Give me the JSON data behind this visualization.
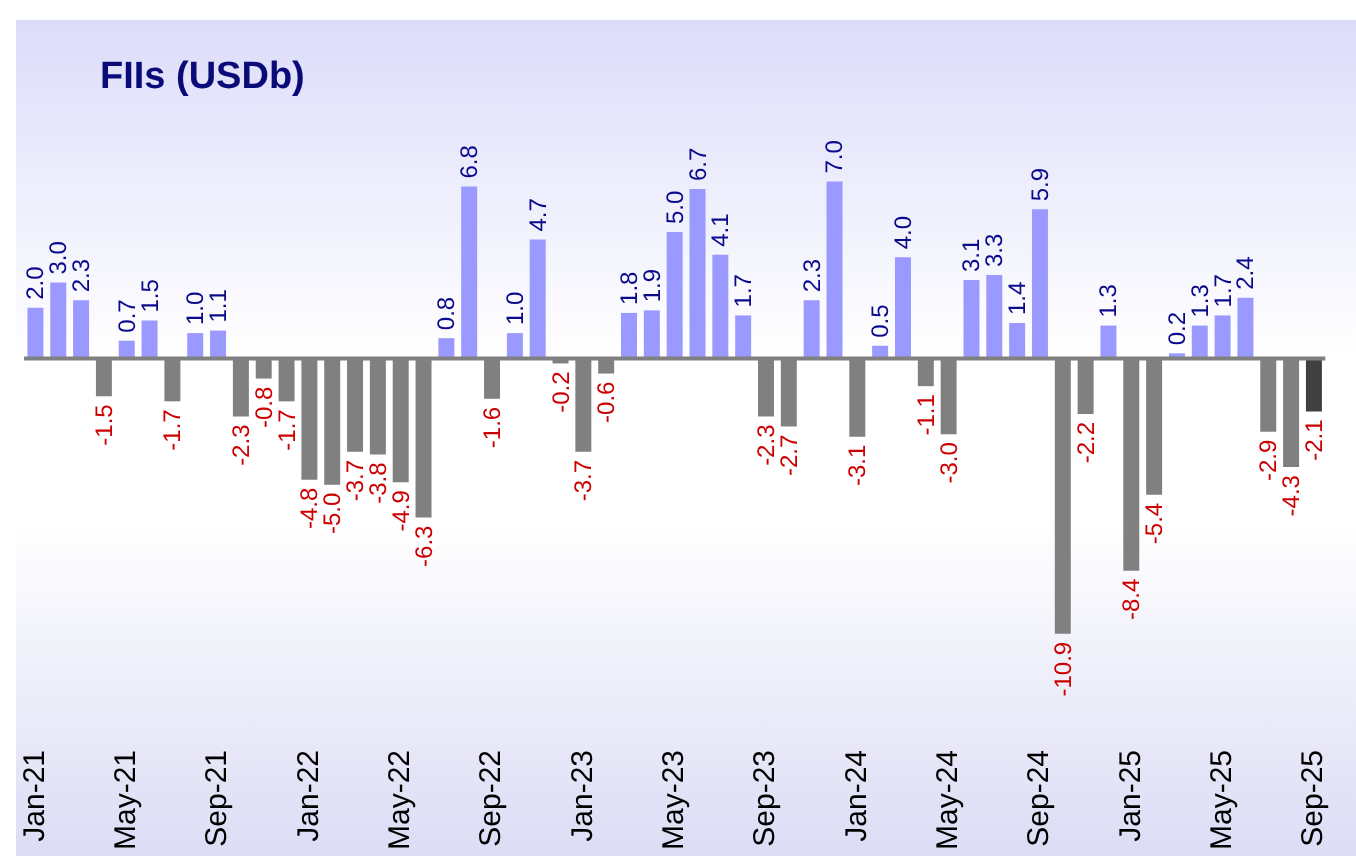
{
  "chart_data": {
    "type": "bar",
    "title": "FIIs (USDb)",
    "categories": [
      "Jan-21",
      null,
      null,
      null,
      "May-21",
      null,
      null,
      null,
      "Sep-21",
      null,
      null,
      null,
      "Jan-22",
      null,
      null,
      null,
      "May-22",
      null,
      null,
      null,
      "Sep-22",
      null,
      null,
      null,
      "Jan-23",
      null,
      null,
      null,
      "May-23",
      null,
      null,
      null,
      "Sep-23",
      null,
      null,
      null,
      "Jan-24",
      null,
      null,
      null,
      "May-24",
      null,
      null,
      null,
      "Sep-24",
      null,
      null,
      null,
      "Jan-25",
      null,
      null,
      null,
      "May-25",
      null,
      null,
      null,
      "Sep-25"
    ],
    "values": [
      2.0,
      3.0,
      2.3,
      -1.5,
      0.7,
      1.5,
      -1.7,
      1.0,
      1.1,
      -2.3,
      -0.8,
      -1.7,
      -4.8,
      -5.0,
      -3.7,
      -3.8,
      -4.9,
      -6.3,
      0.8,
      6.8,
      -1.6,
      1.0,
      4.7,
      -0.2,
      -3.7,
      -0.6,
      1.8,
      1.9,
      5.0,
      6.7,
      4.1,
      1.7,
      -2.3,
      -2.7,
      2.3,
      7.0,
      -3.1,
      0.5,
      4.0,
      -1.1,
      -3.0,
      3.1,
      3.3,
      1.4,
      5.9,
      -10.9,
      -2.2,
      1.3,
      -8.4,
      -5.4,
      0.2,
      1.3,
      1.7,
      2.4,
      -2.9,
      -4.3,
      -2.1
    ],
    "colors": [
      "#9999ff",
      "#9999ff",
      "#9999ff",
      "#808080",
      "#9999ff",
      "#9999ff",
      "#808080",
      "#9999ff",
      "#9999ff",
      "#808080",
      "#808080",
      "#808080",
      "#808080",
      "#808080",
      "#808080",
      "#808080",
      "#808080",
      "#808080",
      "#9999ff",
      "#9999ff",
      "#808080",
      "#9999ff",
      "#9999ff",
      "#808080",
      "#808080",
      "#808080",
      "#9999ff",
      "#9999ff",
      "#9999ff",
      "#9999ff",
      "#9999ff",
      "#9999ff",
      "#808080",
      "#808080",
      "#9999ff",
      "#9999ff",
      "#808080",
      "#9999ff",
      "#9999ff",
      "#808080",
      "#808080",
      "#9999ff",
      "#9999ff",
      "#9999ff",
      "#9999ff",
      "#808080",
      "#808080",
      "#9999ff",
      "#808080",
      "#808080",
      "#9999ff",
      "#9999ff",
      "#9999ff",
      "#9999ff",
      "#808080",
      "#808080",
      "#404040"
    ],
    "value_labels": [
      "2.0",
      "3.0",
      "2.3",
      "-1.5",
      "0.7",
      "1.5",
      "-1.7",
      "1.0",
      "1.1",
      "-2.3",
      "-0.8",
      "-1.7",
      "-4.8",
      "-5.0",
      "-3.7",
      "-3.8",
      "-4.9",
      "-6.3",
      "0.8",
      "6.8",
      "-1.6",
      "1.0",
      "4.7",
      "-0.2",
      "-3.7",
      "-0.6",
      "1.8",
      "1.9",
      "5.0",
      "6.7",
      "4.1",
      "1.7",
      "-2.3",
      "-2.7",
      "2.3",
      "7.0",
      "-3.1",
      "0.5",
      "4.0",
      "-1.1",
      "-3.0",
      "3.1",
      "3.3",
      "1.4",
      "5.9",
      "-10.9",
      "-2.2",
      "1.3",
      "-8.4",
      "-5.4",
      "0.2",
      "1.3",
      "1.7",
      "2.4",
      "-2.9",
      "-4.3",
      "-2.1"
    ],
    "grid": false,
    "legend": false
  }
}
